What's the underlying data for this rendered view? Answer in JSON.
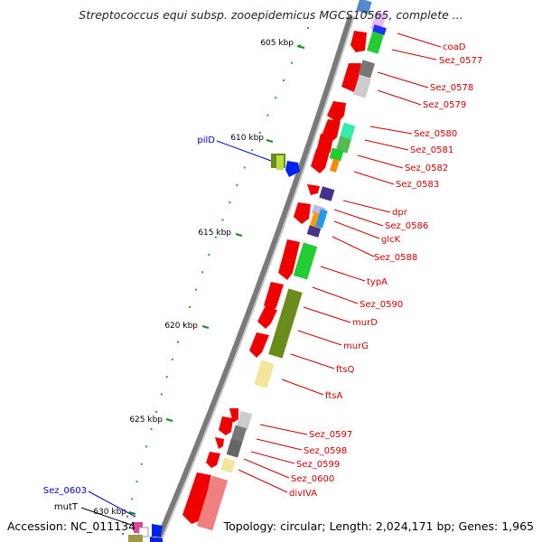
{
  "title": "Streptococcus equi subsp. zooepidemicus MGCS10565, complete ...",
  "footer": {
    "accession": "Accession: NC_011134",
    "summary": "Topology: circular; Length: 2,024,171 bp; Genes: 1,965"
  },
  "colors": {
    "label_right": "#cc0000",
    "label_left": "#0000cc",
    "backbone": "#888888",
    "tick": "#22aa22"
  },
  "ticks": [
    "605 kbp",
    "610 kbp",
    "615 kbp",
    "620 kbp",
    "625 kbp",
    "630 kbp"
  ],
  "gene_labels_right": [
    "coaD",
    "Sez_0577",
    "Sez_0578",
    "Sez_0579",
    "Sez_0580",
    "Sez_0581",
    "Sez_0582",
    "Sez_0583",
    "dpr",
    "Sez_0586",
    "glcK",
    "Sez_0588",
    "typA",
    "Sez_0590",
    "murD",
    "murG",
    "ftsQ",
    "ftsA",
    "Sez_0597",
    "Sez_0598",
    "Sez_0599",
    "Sez_0600",
    "divIVA"
  ],
  "gene_labels_left": [
    "pilD",
    "Sez_0603",
    "mutT"
  ]
}
